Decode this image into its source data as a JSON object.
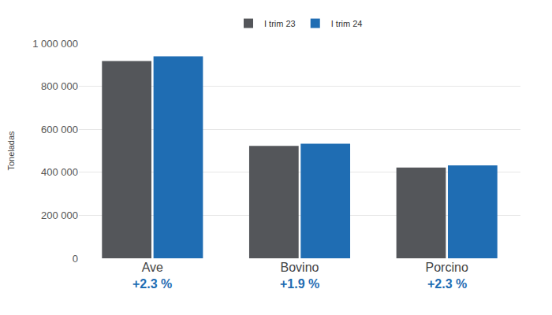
{
  "chart_data": {
    "type": "bar",
    "y_label": "Toneladas",
    "categories": [
      "Ave",
      "Bovino",
      "Porcino"
    ],
    "series": [
      {
        "name": "I trim 23",
        "color": "#54565a",
        "values": [
          918000,
          523000,
          422000
        ]
      },
      {
        "name": "I trim 24",
        "color": "#1f6db3",
        "values": [
          940000,
          533000,
          432000
        ]
      }
    ],
    "ylim": [
      0,
      1000000
    ],
    "yticks": [
      0,
      {
        "value": 200000,
        "label": "200 000"
      },
      {
        "value": 400000,
        "label": "400 000"
      },
      {
        "value": 600000,
        "label": "600 000"
      },
      {
        "value": 800000,
        "label": "800 000"
      },
      {
        "value": 1000000,
        "label": "1 000 000"
      }
    ],
    "grid": true,
    "legend": "top",
    "annotations": [
      {
        "category": "Ave",
        "text": "+2.3 %"
      },
      {
        "category": "Bovino",
        "text": "+1.9 %"
      },
      {
        "category": "Porcino",
        "text": "+2.3 %"
      }
    ]
  }
}
